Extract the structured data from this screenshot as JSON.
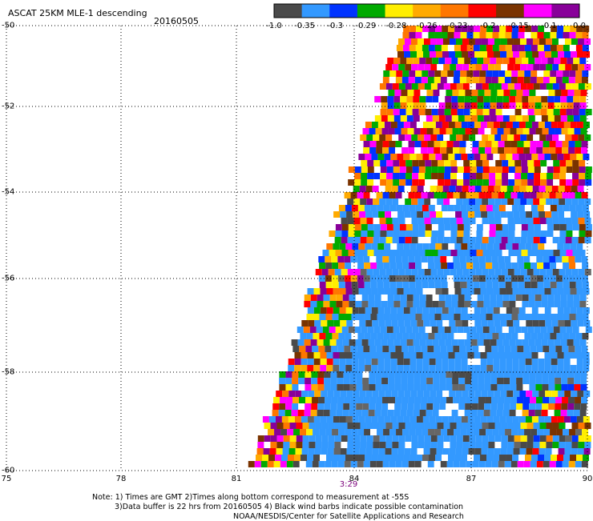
{
  "header": {
    "title": "ASCAT 25KM MLE-1 descending",
    "date": "20160505"
  },
  "colorbar": {
    "labels": [
      "-1.0",
      "-0.35",
      "-0.3",
      "-0.29",
      "-0.28",
      "-0.26",
      "-0.23",
      "-0.2",
      "-0.15",
      "-0.1",
      "0.0"
    ],
    "colors": [
      "#4a4a4a",
      "#3399ff",
      "#0033ff",
      "#00aa00",
      "#ffee00",
      "#ffaa00",
      "#ff7700",
      "#ff0000",
      "#7a3300",
      "#ff00ff",
      "#880099"
    ]
  },
  "axes": {
    "lat_labels": [
      "-50",
      "-52",
      "-54",
      "-56",
      "-58",
      "-60"
    ],
    "lon_labels": [
      "75",
      "78",
      "81",
      "84",
      "87",
      "90"
    ]
  },
  "time_label": "3:29",
  "notes": {
    "line1": "Note: 1) Times are GMT 2)Times along bottom correspond to measurement at -55S",
    "line2": "3)Data buffer is 22 hrs from 20160505 4) Black wind barbs indicate possible contamination",
    "line3": "NOAA/NESDIS/Center for Satellite Applications and Research"
  }
}
